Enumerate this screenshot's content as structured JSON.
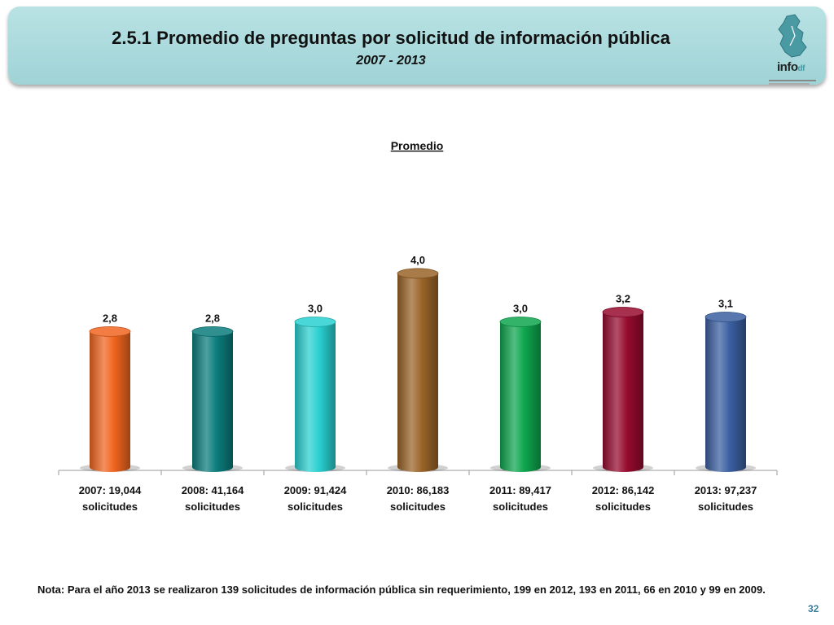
{
  "header": {
    "title": "2.5.1 Promedio de preguntas por solicitud de información pública",
    "subtitle": "2007 - 2013",
    "logo_text": "info",
    "logo_suffix": "df"
  },
  "chart_data": {
    "type": "bar",
    "title": "Promedio",
    "categories": [
      [
        "2007: 19,044",
        "solicitudes"
      ],
      [
        "2008: 41,164",
        "solicitudes"
      ],
      [
        "2009: 91,424",
        "solicitudes"
      ],
      [
        "2010: 86,183",
        "solicitudes"
      ],
      [
        "2011: 89,417",
        "solicitudes"
      ],
      [
        "2012: 86,142",
        "solicitudes"
      ],
      [
        "2013: 97,237",
        "solicitudes"
      ]
    ],
    "values": [
      2.8,
      2.8,
      3.0,
      4.0,
      3.0,
      3.2,
      3.1
    ],
    "value_labels": [
      "2,8",
      "2,8",
      "3,0",
      "4,0",
      "3,0",
      "3,2",
      "3,1"
    ],
    "colors": [
      "#f0651f",
      "#0b7c7c",
      "#2ad0d0",
      "#9a6428",
      "#0ea64e",
      "#960b2e",
      "#3a5fa0"
    ],
    "ylim": [
      0,
      4.1
    ],
    "grid": false,
    "legend": "none"
  },
  "note": "Nota: Para el año 2013 se realizaron 139 solicitudes de información pública sin requerimiento, 199 en 2012, 193 en 2011, 66 en 2010 y 99 en 2009.",
  "page_number": "32"
}
